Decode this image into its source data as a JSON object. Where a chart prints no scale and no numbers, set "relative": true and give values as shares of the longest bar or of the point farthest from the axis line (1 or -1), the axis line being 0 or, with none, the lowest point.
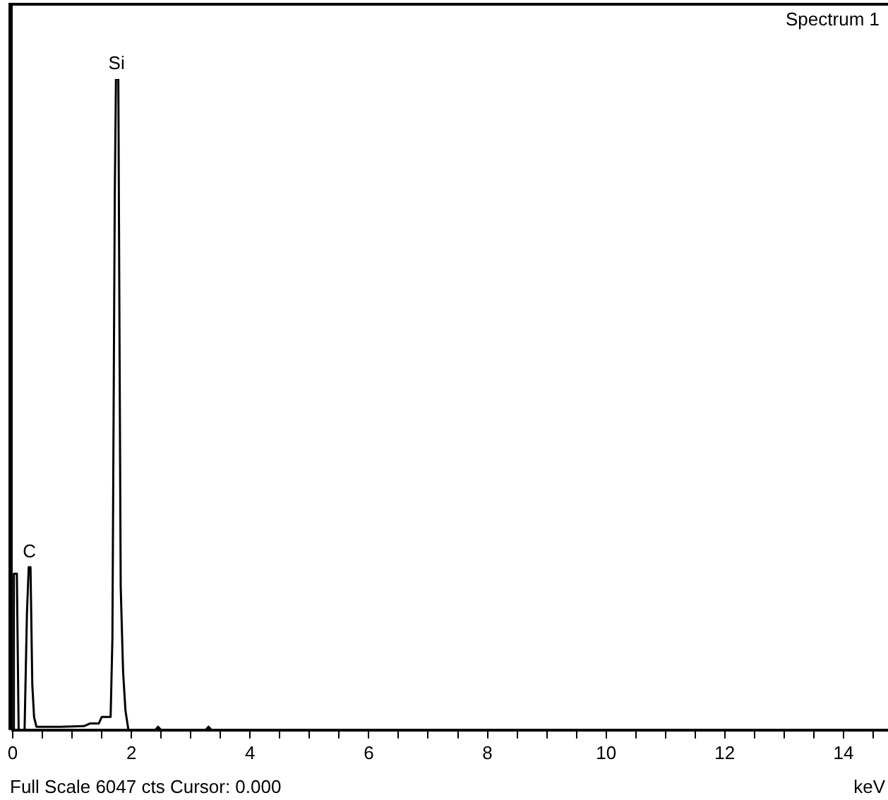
{
  "chart_data": {
    "type": "line",
    "title": "Spectrum 1",
    "xlabel": "keV",
    "relative": true,
    "marker": "none",
    "legend": false,
    "grid": false,
    "x": [
      0,
      0.02,
      0.07,
      0.1,
      0.2,
      0.24,
      0.27,
      0.3,
      0.33,
      0.36,
      0.4,
      0.8,
      1.2,
      1.3,
      1.45,
      1.5,
      1.65,
      1.68,
      1.72,
      1.74,
      1.78,
      1.8,
      1.82,
      1.86,
      1.9,
      1.95,
      2.4,
      2.45,
      2.5,
      3.25,
      3.3,
      3.35,
      14.75
    ],
    "series": [
      {
        "color": "#000000",
        "values": [
          0,
          0.24,
          0.24,
          0,
          0,
          0.18,
          0.25,
          0.25,
          0.07,
          0.02,
          0.005,
          0.005,
          0.006,
          0.01,
          0.01,
          0.02,
          0.02,
          0.14,
          0.82,
          1,
          1,
          0.6,
          0.22,
          0.09,
          0.03,
          0,
          0,
          0.005,
          0,
          0,
          0.005,
          0,
          0
        ]
      }
    ],
    "xlim": [
      0,
      14.75
    ],
    "xticks": [
      0,
      {
        "value": 0.5,
        "label": null
      },
      {
        "value": 1,
        "label": null
      },
      {
        "value": 1.5,
        "label": null
      },
      2,
      {
        "value": 2.5,
        "label": null
      },
      {
        "value": 3,
        "label": null
      },
      {
        "value": 3.5,
        "label": null
      },
      4,
      {
        "value": 4.5,
        "label": null
      },
      {
        "value": 5,
        "label": null
      },
      {
        "value": 5.5,
        "label": null
      },
      6,
      {
        "value": 6.5,
        "label": null
      },
      {
        "value": 7,
        "label": null
      },
      {
        "value": 7.5,
        "label": null
      },
      8,
      {
        "value": 8.5,
        "label": null
      },
      {
        "value": 9,
        "label": null
      },
      {
        "value": 9.5,
        "label": null
      },
      10,
      {
        "value": 10.5,
        "label": null
      },
      {
        "value": 11,
        "label": null
      },
      {
        "value": 11.5,
        "label": null
      },
      12,
      {
        "value": 12.5,
        "label": null
      },
      {
        "value": 13,
        "label": null
      },
      {
        "value": 13.5,
        "label": null
      },
      14,
      {
        "value": 14.5,
        "label": null
      }
    ],
    "annotations": [
      {
        "text": "Si",
        "x": 1.75,
        "y": 1
      },
      {
        "text": "C",
        "x": 0.28,
        "y": 0.25
      },
      "Full Scale 6047 cts Cursor: 0.000"
    ]
  }
}
